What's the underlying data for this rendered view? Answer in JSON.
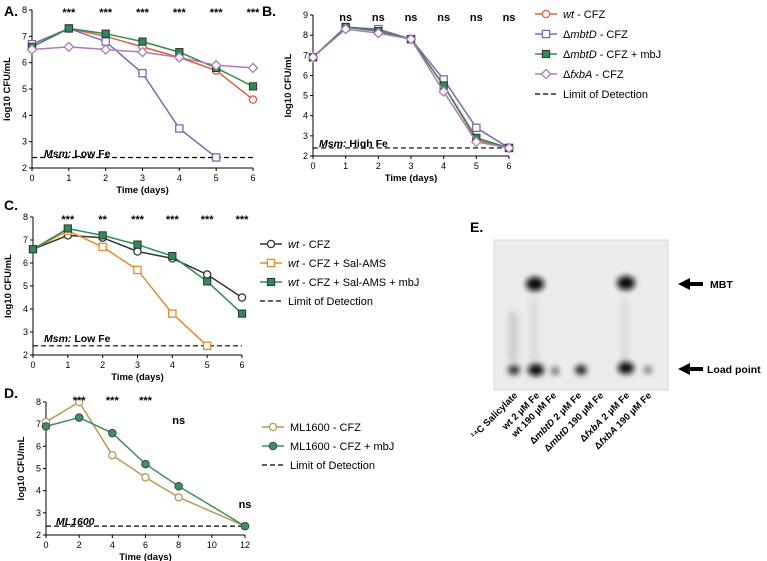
{
  "colors": {
    "wt_A": "#d9623c",
    "mbtD": "#7b68b0",
    "mbtD_mbJ": "#2e8b57",
    "fxbA": "#b07ab8",
    "wt_C": "#333333",
    "salams": "#e38a2e",
    "salams_mbJ": "#2e8b57",
    "ml_cfz": "#b59b5a",
    "ml_mbj": "#3f8f63"
  },
  "chart_data": [
    {
      "panel": "A.",
      "type": "line",
      "condition_bold": "Msm:",
      "condition_rest": " Low Fe",
      "xlabel": "Time (days)",
      "ylabel": "log10 CFU/mL",
      "x": [
        0,
        1,
        2,
        3,
        4,
        5,
        6
      ],
      "xlim": [
        0,
        6
      ],
      "ylim": [
        2,
        8
      ],
      "yticks": [
        2,
        3,
        4,
        5,
        6,
        7,
        8
      ],
      "limit_of_detection": 2.4,
      "series": [
        {
          "name": "wt - CFZ",
          "values": [
            6.6,
            7.3,
            7.0,
            6.6,
            6.2,
            5.7,
            4.6
          ],
          "color": "#d9623c",
          "marker": "circle"
        },
        {
          "name": "ΔmbtD - CFZ",
          "values": [
            6.7,
            7.3,
            6.8,
            5.6,
            3.5,
            2.4,
            null
          ],
          "color": "#7b68b0",
          "marker": "square"
        },
        {
          "name": "ΔmbtD - CFZ + mbJ",
          "values": [
            6.6,
            7.3,
            7.1,
            6.8,
            6.4,
            5.8,
            5.1
          ],
          "color": "#2e8b57",
          "marker": "square-filled"
        },
        {
          "name": "ΔfxbA - CFZ",
          "values": [
            6.5,
            6.6,
            6.5,
            6.4,
            6.2,
            5.9,
            5.8
          ],
          "color": "#b07ab8",
          "marker": "diamond"
        }
      ],
      "significance": [
        {
          "x": 1,
          "label": "***"
        },
        {
          "x": 2,
          "label": "***"
        },
        {
          "x": 3,
          "label": "***"
        },
        {
          "x": 4,
          "label": "***"
        },
        {
          "x": 5,
          "label": "***"
        },
        {
          "x": 6,
          "label": "***"
        }
      ]
    },
    {
      "panel": "B.",
      "type": "line",
      "condition_bold": "Msm:",
      "condition_rest": " High Fe",
      "xlabel": "Time (days)",
      "ylabel": "log10 CFU/mL",
      "x": [
        0,
        1,
        2,
        3,
        4,
        5,
        6
      ],
      "xlim": [
        0,
        6
      ],
      "ylim": [
        2,
        9
      ],
      "yticks": [
        2,
        3,
        4,
        5,
        6,
        7,
        8,
        9
      ],
      "limit_of_detection": 2.4,
      "series": [
        {
          "name": "wt - CFZ",
          "values": [
            6.9,
            8.4,
            8.2,
            7.8,
            5.5,
            2.8,
            2.4
          ],
          "color": "#d9623c",
          "marker": "circle"
        },
        {
          "name": "ΔmbtD - CFZ",
          "values": [
            6.9,
            8.4,
            8.3,
            7.8,
            5.8,
            3.4,
            2.4
          ],
          "color": "#7b68b0",
          "marker": "square"
        },
        {
          "name": "ΔmbtD - CFZ + mbJ",
          "values": [
            6.9,
            8.4,
            8.2,
            7.8,
            5.5,
            2.9,
            2.4
          ],
          "color": "#2e8b57",
          "marker": "square-filled"
        },
        {
          "name": "ΔfxbA - CFZ",
          "values": [
            6.9,
            8.3,
            8.1,
            7.8,
            5.2,
            2.7,
            2.4
          ],
          "color": "#b07ab8",
          "marker": "diamond"
        }
      ],
      "significance": [
        {
          "x": 1,
          "label": "ns"
        },
        {
          "x": 2,
          "label": "ns"
        },
        {
          "x": 3,
          "label": "ns"
        },
        {
          "x": 4,
          "label": "ns"
        },
        {
          "x": 5,
          "label": "ns"
        },
        {
          "x": 6,
          "label": "ns"
        }
      ]
    },
    {
      "panel": "C.",
      "type": "line",
      "condition_bold": "Msm:",
      "condition_rest": " Low Fe",
      "xlabel": "Time (days)",
      "ylabel": "log10 CFU/mL",
      "x": [
        0,
        1,
        2,
        3,
        4,
        5,
        6
      ],
      "xlim": [
        0,
        6
      ],
      "ylim": [
        2,
        8
      ],
      "yticks": [
        2,
        3,
        4,
        5,
        6,
        7,
        8
      ],
      "limit_of_detection": 2.4,
      "series": [
        {
          "name": "wt - CFZ",
          "values": [
            6.6,
            7.2,
            7.1,
            6.5,
            6.2,
            5.5,
            4.5
          ],
          "color": "#333333",
          "marker": "circle"
        },
        {
          "name": "wt - CFZ + Sal-AMS",
          "values": [
            6.6,
            7.4,
            6.7,
            5.7,
            3.8,
            2.4,
            null
          ],
          "color": "#e38a2e",
          "marker": "square"
        },
        {
          "name": "wt - CFZ + Sal-AMS + mbJ",
          "values": [
            6.6,
            7.5,
            7.2,
            6.8,
            6.3,
            5.2,
            3.8
          ],
          "color": "#2e8b57",
          "marker": "square-filled"
        }
      ],
      "significance": [
        {
          "x": 1,
          "label": "***"
        },
        {
          "x": 2,
          "label": "**"
        },
        {
          "x": 3,
          "label": "***"
        },
        {
          "x": 4,
          "label": "***"
        },
        {
          "x": 5,
          "label": "***"
        },
        {
          "x": 6,
          "label": "***"
        }
      ]
    },
    {
      "panel": "D.",
      "type": "line",
      "condition_bold": "ML1600",
      "condition_rest": "",
      "xlabel": "Time (days)",
      "ylabel": "log10 CFU/mL",
      "x": [
        0,
        2,
        4,
        6,
        8,
        12
      ],
      "xlim": [
        0,
        12
      ],
      "ylim": [
        2,
        8
      ],
      "yticks": [
        2,
        3,
        4,
        5,
        6,
        7,
        8
      ],
      "xticks": [
        0,
        2,
        4,
        6,
        8,
        10,
        12
      ],
      "limit_of_detection": 2.4,
      "series": [
        {
          "name": "ML1600 - CFZ",
          "values": [
            7.1,
            8.0,
            5.6,
            4.6,
            3.7,
            2.4
          ],
          "color": "#b59b5a",
          "marker": "circle"
        },
        {
          "name": "ML1600 - CFZ + mbJ",
          "values": [
            6.9,
            7.3,
            6.6,
            5.2,
            4.2,
            2.4
          ],
          "color": "#3f8f63",
          "marker": "circle-filled"
        }
      ],
      "significance": [
        {
          "x": 2,
          "label": "***"
        },
        {
          "x": 4,
          "label": "***"
        },
        {
          "x": 6,
          "label": "***"
        },
        {
          "x": 8,
          "label": "ns"
        },
        {
          "x": 12,
          "label": "ns"
        }
      ]
    }
  ],
  "legends": {
    "B": {
      "items": [
        {
          "pre": "",
          "italic": "wt",
          "post": " - CFZ"
        },
        {
          "pre": "Δ",
          "italic": "mbtD",
          "post": " - CFZ"
        },
        {
          "pre": "Δ",
          "italic": "mbtD",
          "post": " - CFZ + mbJ"
        },
        {
          "pre": "Δ",
          "italic": "fxbA",
          "post": " - CFZ"
        }
      ],
      "lod": "Limit of Detection"
    },
    "C": {
      "items": [
        {
          "pre": "",
          "italic": "wt",
          "post": " - CFZ"
        },
        {
          "pre": "",
          "italic": "wt",
          "post": " - CFZ + Sal-AMS"
        },
        {
          "pre": "",
          "italic": "wt",
          "post": " - CFZ + Sal-AMS + mbJ"
        }
      ],
      "lod": "Limit of Detection"
    },
    "D": {
      "items": [
        {
          "pre": "",
          "italic": "",
          "post": "ML1600 - CFZ"
        },
        {
          "pre": "",
          "italic": "",
          "post": "ML1600 - CFZ + mbJ"
        }
      ],
      "lod": "Limit of Detection"
    }
  },
  "tlc": {
    "panel": "E.",
    "mbt_label": "MBT",
    "load_label": "Load point",
    "lanes": [
      "¹⁴C Salicylate",
      "wt 2 µM Fe",
      "wt 190 µM Fe",
      "ΔmbtD 2 µM Fe",
      "ΔmbtD 190 µM Fe",
      "ΔfxbA 2 µM Fe",
      "ΔfxbA 190 µM Fe"
    ]
  }
}
